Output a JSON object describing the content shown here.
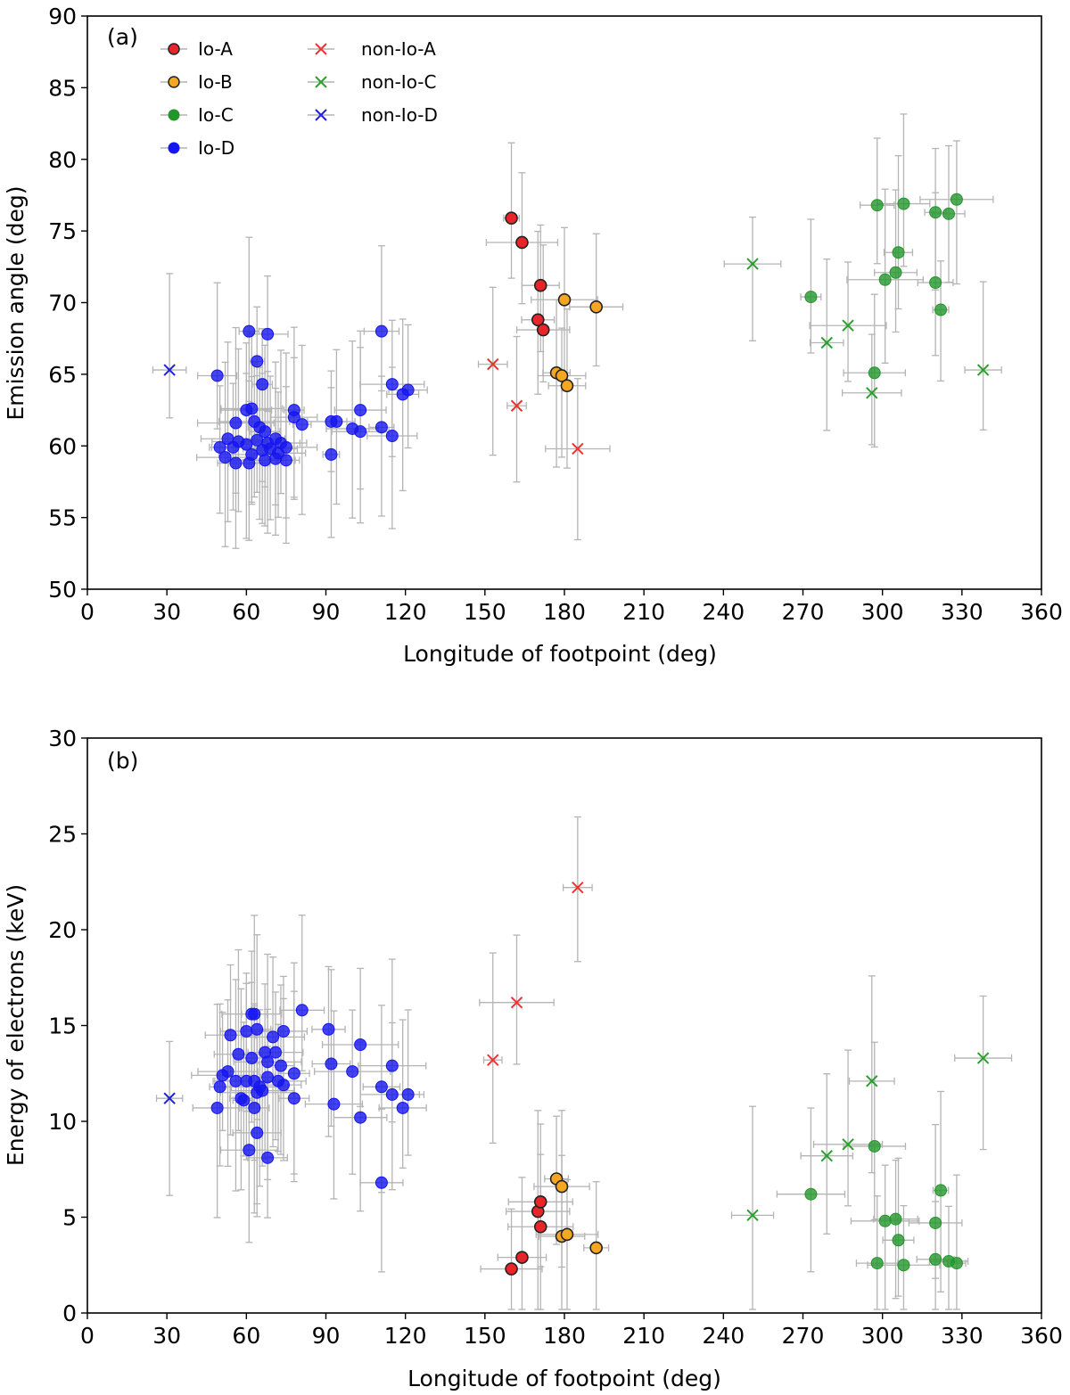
{
  "colors": {
    "io_a": "#e8262a",
    "io_b": "#f5a623",
    "io_c": "#23962a",
    "io_d": "#1515f0",
    "nonio_a": "#f03232",
    "nonio_c": "#2ca02c",
    "nonio_d": "#1f1fe0",
    "errorbar": "#b4b4b4"
  },
  "legend": {
    "io_a": "Io-A",
    "io_b": "Io-B",
    "io_c": "Io-C",
    "io_d": "Io-D",
    "nonio_a": "non-Io-A",
    "nonio_c": "non-Io-C",
    "nonio_d": "non-Io-D"
  },
  "chart_data": [
    {
      "type": "scatter",
      "panel_label": "(a)",
      "xlabel": "Longitude of footpoint (deg)",
      "ylabel": "Emission angle (deg)",
      "xlim": [
        0,
        360
      ],
      "ylim": [
        50,
        90
      ],
      "xticks": [
        "0",
        "30",
        "60",
        "90",
        "120",
        "150",
        "180",
        "210",
        "240",
        "270",
        "300",
        "330",
        "360"
      ],
      "yticks": [
        "50",
        "55",
        "60",
        "65",
        "70",
        "75",
        "80",
        "85",
        "90"
      ],
      "legend_position": "top-left",
      "series": [
        {
          "key": "io_a",
          "name": "Io-A",
          "marker": "circle",
          "points": [
            [
              160,
              75.9
            ],
            [
              164,
              74.2
            ],
            [
              171,
              71.2
            ],
            [
              170,
              68.8
            ],
            [
              172,
              68.1
            ]
          ]
        },
        {
          "key": "io_b",
          "name": "Io-B",
          "marker": "circle",
          "points": [
            [
              180,
              70.2
            ],
            [
              192,
              69.7
            ],
            [
              177,
              65.1
            ],
            [
              179,
              64.9
            ],
            [
              181,
              64.2
            ]
          ]
        },
        {
          "key": "io_c",
          "name": "Io-C",
          "marker": "circle",
          "points": [
            [
              273,
              70.4
            ],
            [
              298,
              76.8
            ],
            [
              308,
              76.9
            ],
            [
              320,
              76.3
            ],
            [
              325,
              76.2
            ],
            [
              328,
              77.2
            ],
            [
              306,
              73.5
            ],
            [
              305,
              72.1
            ],
            [
              301,
              71.6
            ],
            [
              320,
              71.4
            ],
            [
              322,
              69.5
            ],
            [
              297,
              65.1
            ]
          ]
        },
        {
          "key": "io_d",
          "name": "Io-D",
          "marker": "circle",
          "points": [
            [
              61,
              68.0
            ],
            [
              68,
              67.8
            ],
            [
              111,
              68.0
            ],
            [
              64,
              65.9
            ],
            [
              49,
              64.9
            ],
            [
              66,
              64.3
            ],
            [
              115,
              64.3
            ],
            [
              119,
              63.6
            ],
            [
              121,
              63.9
            ],
            [
              60,
              62.5
            ],
            [
              62,
              62.6
            ],
            [
              78,
              62.5
            ],
            [
              103,
              62.5
            ],
            [
              56,
              61.6
            ],
            [
              63,
              61.7
            ],
            [
              65,
              61.3
            ],
            [
              67,
              61.0
            ],
            [
              78,
              62.0
            ],
            [
              81,
              61.5
            ],
            [
              92,
              61.7
            ],
            [
              94,
              61.7
            ],
            [
              100,
              61.2
            ],
            [
              103,
              61.0
            ],
            [
              111,
              61.3
            ],
            [
              115,
              60.7
            ],
            [
              53,
              60.5
            ],
            [
              57,
              60.3
            ],
            [
              60,
              60.1
            ],
            [
              64,
              60.4
            ],
            [
              68,
              60.2
            ],
            [
              71,
              60.5
            ],
            [
              73,
              60.2
            ],
            [
              50,
              59.9
            ],
            [
              55,
              59.9
            ],
            [
              62,
              59.4
            ],
            [
              66,
              59.7
            ],
            [
              69,
              59.8
            ],
            [
              72,
              59.5
            ],
            [
              75,
              59.9
            ],
            [
              52,
              59.2
            ],
            [
              56,
              58.8
            ],
            [
              61,
              58.8
            ],
            [
              67,
              59.0
            ],
            [
              71,
              59.1
            ],
            [
              75,
              59.0
            ],
            [
              92,
              59.4
            ]
          ]
        },
        {
          "key": "nonio_a",
          "name": "non-Io-A",
          "marker": "x",
          "points": [
            [
              153,
              65.7
            ],
            [
              162,
              62.8
            ],
            [
              185,
              59.8
            ]
          ]
        },
        {
          "key": "nonio_c",
          "name": "non-Io-C",
          "marker": "x",
          "points": [
            [
              251,
              72.7
            ],
            [
              279,
              67.2
            ],
            [
              287,
              68.4
            ],
            [
              296,
              63.7
            ],
            [
              338,
              65.3
            ]
          ]
        },
        {
          "key": "nonio_d",
          "name": "non-Io-D",
          "marker": "x",
          "points": [
            [
              31,
              65.3
            ]
          ]
        }
      ]
    },
    {
      "type": "scatter",
      "panel_label": "(b)",
      "xlabel": "Longitude of footpoint (deg)",
      "ylabel": "Energy of electrons (keV)",
      "xlim": [
        0,
        360
      ],
      "ylim": [
        0,
        30
      ],
      "xticks": [
        "0",
        "30",
        "60",
        "90",
        "120",
        "150",
        "180",
        "210",
        "240",
        "270",
        "300",
        "330",
        "360"
      ],
      "yticks": [
        "0",
        "5",
        "10",
        "15",
        "20",
        "25",
        "30"
      ],
      "series": [
        {
          "key": "io_a",
          "name": "Io-A",
          "marker": "circle",
          "points": [
            [
              160,
              2.3
            ],
            [
              164,
              2.9
            ],
            [
              170,
              5.3
            ],
            [
              171,
              5.8
            ],
            [
              171,
              4.5
            ]
          ]
        },
        {
          "key": "io_b",
          "name": "Io-B",
          "marker": "circle",
          "points": [
            [
              177,
              7.0
            ],
            [
              179,
              6.6
            ],
            [
              179,
              4.0
            ],
            [
              181,
              4.1
            ],
            [
              192,
              3.4
            ]
          ]
        },
        {
          "key": "io_c",
          "name": "Io-C",
          "marker": "circle",
          "points": [
            [
              273,
              6.2
            ],
            [
              297,
              8.7
            ],
            [
              322,
              6.4
            ],
            [
              301,
              4.8
            ],
            [
              305,
              4.9
            ],
            [
              320,
              4.7
            ],
            [
              306,
              3.8
            ],
            [
              298,
              2.6
            ],
            [
              308,
              2.5
            ],
            [
              320,
              2.8
            ],
            [
              325,
              2.7
            ],
            [
              328,
              2.6
            ]
          ]
        },
        {
          "key": "io_d",
          "name": "Io-D",
          "marker": "circle",
          "points": [
            [
              62,
              15.6
            ],
            [
              63,
              15.6
            ],
            [
              81,
              15.8
            ],
            [
              54,
              14.5
            ],
            [
              60,
              14.7
            ],
            [
              64,
              14.8
            ],
            [
              70,
              14.4
            ],
            [
              74,
              14.7
            ],
            [
              91,
              14.8
            ],
            [
              103,
              14.0
            ],
            [
              57,
              13.5
            ],
            [
              62,
              13.3
            ],
            [
              67,
              13.6
            ],
            [
              71,
              13.6
            ],
            [
              68,
              13.1
            ],
            [
              73,
              12.9
            ],
            [
              92,
              13.0
            ],
            [
              115,
              12.9
            ],
            [
              51,
              12.4
            ],
            [
              53,
              12.6
            ],
            [
              56,
              12.1
            ],
            [
              60,
              12.1
            ],
            [
              63,
              12.1
            ],
            [
              65,
              11.8
            ],
            [
              68,
              12.3
            ],
            [
              72,
              12.1
            ],
            [
              74,
              11.9
            ],
            [
              78,
              12.5
            ],
            [
              100,
              12.6
            ],
            [
              50,
              11.8
            ],
            [
              58,
              11.2
            ],
            [
              59,
              11.1
            ],
            [
              64,
              11.5
            ],
            [
              66,
              11.6
            ],
            [
              78,
              11.2
            ],
            [
              93,
              10.9
            ],
            [
              111,
              11.8
            ],
            [
              115,
              11.4
            ],
            [
              119,
              10.7
            ],
            [
              121,
              11.4
            ],
            [
              49,
              10.7
            ],
            [
              63,
              10.7
            ],
            [
              64,
              9.4
            ],
            [
              61,
              8.5
            ],
            [
              68,
              8.1
            ],
            [
              103,
              10.2
            ],
            [
              111,
              6.8
            ]
          ]
        },
        {
          "key": "nonio_a",
          "name": "non-Io-A",
          "marker": "x",
          "points": [
            [
              153,
              13.2
            ],
            [
              162,
              16.2
            ],
            [
              185,
              22.2
            ]
          ]
        },
        {
          "key": "nonio_c",
          "name": "non-Io-C",
          "marker": "x",
          "points": [
            [
              251,
              5.1
            ],
            [
              279,
              8.2
            ],
            [
              287,
              8.8
            ],
            [
              296,
              12.1
            ],
            [
              338,
              13.3
            ]
          ]
        },
        {
          "key": "nonio_d",
          "name": "non-Io-D",
          "marker": "x",
          "points": [
            [
              31,
              11.2
            ]
          ]
        }
      ]
    }
  ]
}
